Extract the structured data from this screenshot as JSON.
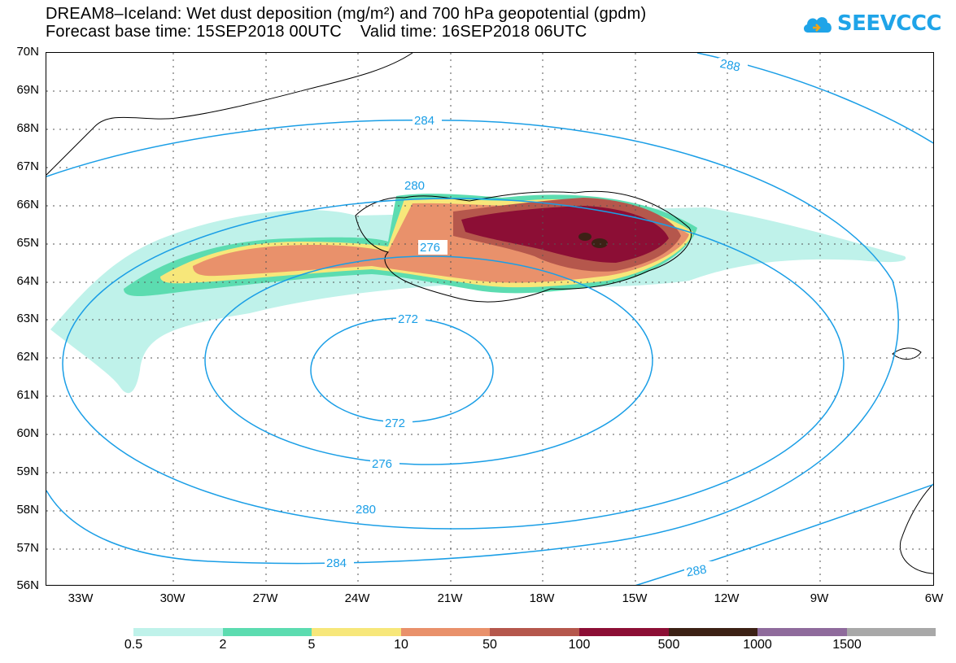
{
  "title_line1": "DREAM8–Iceland: Wet dust deposition (mg/m²) and 700 hPa geopotential (gpdm)",
  "title_line2": "Forecast base time: 15SEP2018 00UTC    Valid time: 16SEP2018 06UTC",
  "logo_text": "SEEVCCC",
  "logo_icon": "cloud-icon",
  "lat_labels": [
    "70N",
    "69N",
    "68N",
    "67N",
    "66N",
    "65N",
    "64N",
    "63N",
    "62N",
    "61N",
    "60N",
    "59N",
    "58N",
    "57N",
    "56N"
  ],
  "lon_labels": [
    "33W",
    "30W",
    "27W",
    "24W",
    "21W",
    "18W",
    "15W",
    "12W",
    "9W",
    "6W"
  ],
  "contour_labels": [
    "288",
    "284",
    "280",
    "276",
    "272",
    "272",
    "276",
    "280",
    "284",
    "288"
  ],
  "colorbar": {
    "labels": [
      "0.5",
      "2",
      "5",
      "10",
      "50",
      "100",
      "500",
      "1000",
      "1500"
    ],
    "colors": [
      "#bff2ea",
      "#5cdcb0",
      "#f7e77a",
      "#e9916b",
      "#b5574c",
      "#8c0e35",
      "#3c2115",
      "#8f6b9c",
      "#a8a8a8"
    ]
  },
  "contour_color": "#1a9ee6"
}
